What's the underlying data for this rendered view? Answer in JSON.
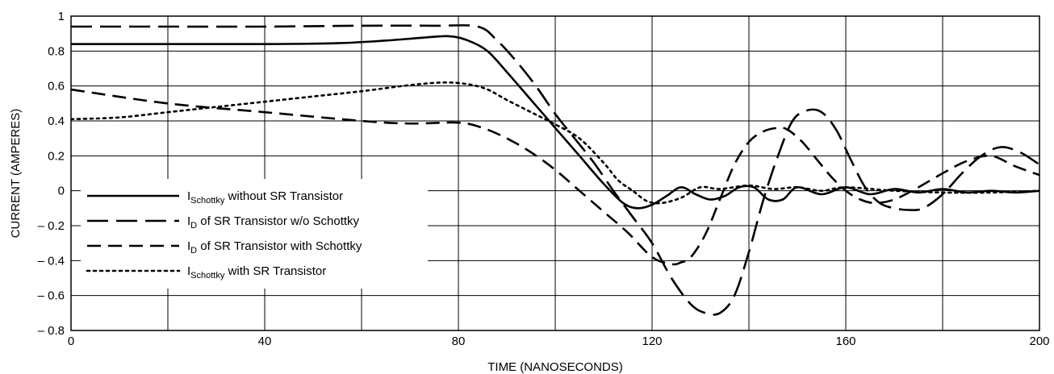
{
  "chart_data": {
    "type": "line",
    "xlabel": "TIME (NANOSECONDS)",
    "ylabel": "CURRENT (AMPERES)",
    "xlim": [
      0,
      200
    ],
    "ylim": [
      -0.8,
      1.0
    ],
    "x_ticks": [
      0,
      40,
      80,
      120,
      160,
      200
    ],
    "y_ticks": [
      1,
      0.8,
      0.6,
      0.4,
      0.2,
      0,
      -0.2,
      -0.4,
      -0.6,
      -0.8
    ],
    "x_tick_labels": [
      "0",
      "40",
      "80",
      "120",
      "160",
      "200"
    ],
    "y_tick_labels": [
      "1",
      "0.8",
      "0.6",
      "0.4",
      "0.2",
      "0",
      "– 0.2",
      "– 0.4",
      "– 0.6",
      "– 0.8"
    ],
    "grid": true,
    "grid_x_step": 20,
    "grid_y_step": 0.2,
    "legend_position": "bottom-left",
    "series": [
      {
        "legend_main": "I",
        "legend_sub": "Schottky",
        "legend_rest": " without SR Transistor",
        "style": "solid",
        "x": [
          0,
          20,
          40,
          55,
          65,
          72,
          78,
          82,
          86,
          90,
          95,
          100,
          105,
          110,
          114,
          117,
          120,
          123,
          126,
          129,
          132,
          135,
          138,
          141,
          144,
          147,
          150,
          155,
          160,
          165,
          170,
          175,
          180,
          185,
          190,
          195,
          200
        ],
        "y": [
          0.84,
          0.84,
          0.84,
          0.845,
          0.86,
          0.875,
          0.885,
          0.86,
          0.8,
          0.68,
          0.52,
          0.36,
          0.2,
          0.04,
          -0.07,
          -0.1,
          -0.08,
          -0.03,
          0.02,
          -0.02,
          -0.05,
          -0.03,
          0.02,
          0.02,
          -0.05,
          -0.05,
          0.02,
          -0.02,
          0.02,
          -0.02,
          0.01,
          -0.01,
          0.01,
          -0.01,
          0.0,
          -0.01,
          0.0
        ]
      },
      {
        "legend_main": "I",
        "legend_sub": "D",
        "legend_rest": " of SR Transistor w/o Schottky",
        "style": "long-dash",
        "x": [
          0,
          20,
          40,
          60,
          75,
          84,
          88,
          92,
          96,
          100,
          104,
          108,
          112,
          116,
          120,
          124,
          128,
          131,
          134,
          137,
          140,
          143,
          146,
          149,
          152,
          155,
          158,
          161,
          164,
          167,
          170,
          173,
          176,
          180,
          184,
          188,
          192,
          196,
          200
        ],
        "y": [
          0.94,
          0.94,
          0.94,
          0.945,
          0.945,
          0.94,
          0.86,
          0.74,
          0.6,
          0.44,
          0.3,
          0.16,
          0.0,
          -0.15,
          -0.3,
          -0.5,
          -0.65,
          -0.7,
          -0.7,
          -0.6,
          -0.35,
          -0.05,
          0.2,
          0.4,
          0.46,
          0.45,
          0.35,
          0.18,
          0.02,
          -0.07,
          -0.1,
          -0.11,
          -0.1,
          -0.02,
          0.1,
          0.2,
          0.25,
          0.22,
          0.15
        ]
      },
      {
        "legend_main": "I",
        "legend_sub": "D",
        "legend_rest": " of SR Transistor with Schottky",
        "style": "dash",
        "x": [
          0,
          20,
          40,
          60,
          70,
          80,
          85,
          90,
          95,
          100,
          105,
          110,
          115,
          120,
          124,
          126,
          128,
          131,
          134,
          137,
          140,
          143,
          146,
          148,
          151,
          154,
          157,
          160,
          163,
          166,
          170,
          175,
          180,
          185,
          190,
          195,
          200
        ],
        "y": [
          0.58,
          0.5,
          0.45,
          0.4,
          0.385,
          0.39,
          0.36,
          0.3,
          0.22,
          0.12,
          0.0,
          -0.12,
          -0.24,
          -0.38,
          -0.42,
          -0.41,
          -0.38,
          -0.25,
          -0.05,
          0.15,
          0.28,
          0.34,
          0.36,
          0.35,
          0.28,
          0.18,
          0.08,
          0.0,
          -0.05,
          -0.07,
          -0.05,
          0.02,
          0.1,
          0.17,
          0.2,
          0.14,
          0.09
        ]
      },
      {
        "legend_main": "I",
        "legend_sub": "Schottky",
        "legend_rest": " with SR Transistor",
        "style": "dot",
        "x": [
          0,
          10,
          20,
          30,
          40,
          50,
          60,
          70,
          77,
          82,
          86,
          90,
          95,
          100,
          105,
          110,
          113,
          116,
          119,
          122,
          126,
          130,
          134,
          140,
          145,
          150,
          155,
          160,
          170,
          180,
          190,
          200
        ],
        "y": [
          0.41,
          0.42,
          0.45,
          0.48,
          0.51,
          0.54,
          0.57,
          0.605,
          0.62,
          0.61,
          0.58,
          0.52,
          0.45,
          0.38,
          0.3,
          0.16,
          0.06,
          0.0,
          -0.06,
          -0.07,
          -0.04,
          0.02,
          0.01,
          0.03,
          0.01,
          0.02,
          0.0,
          0.02,
          0.0,
          -0.01,
          -0.01,
          0.0
        ]
      }
    ]
  }
}
